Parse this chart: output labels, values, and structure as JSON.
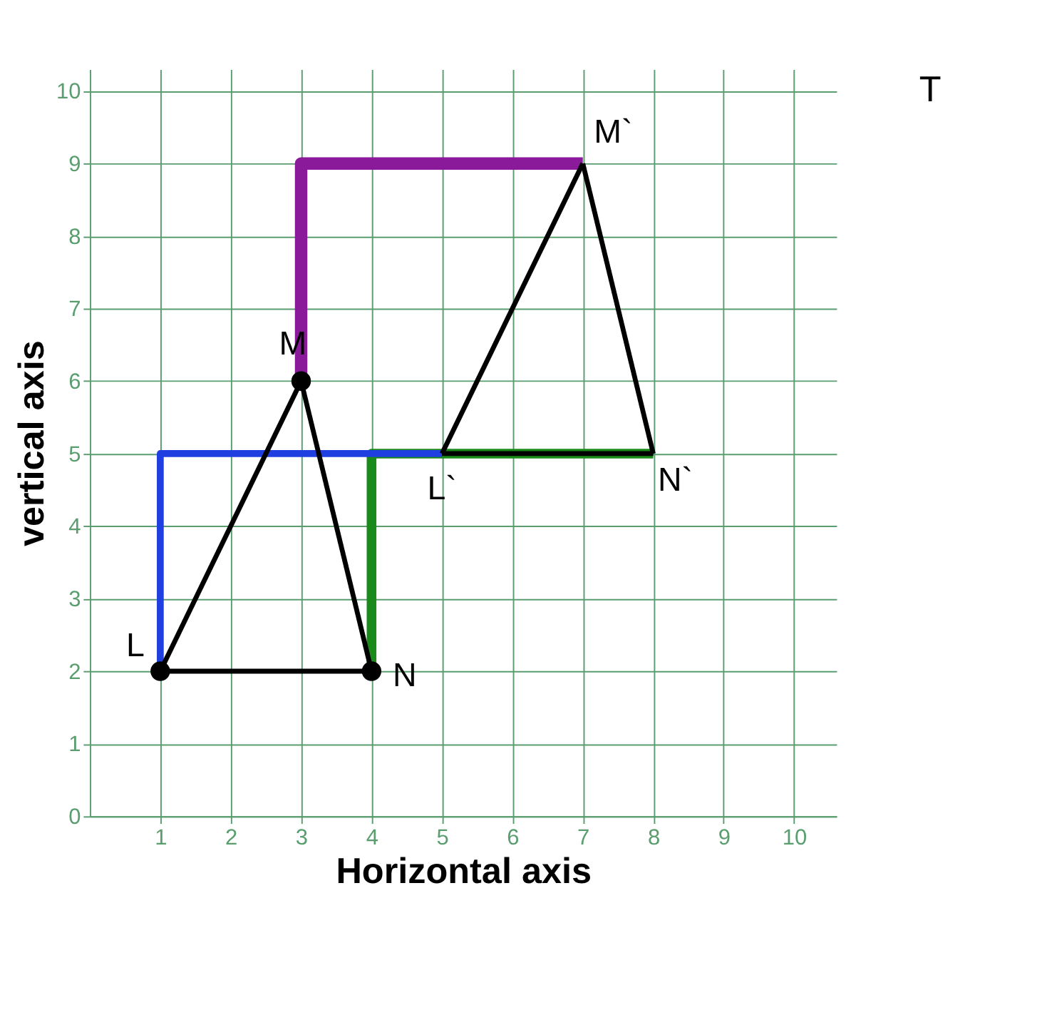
{
  "chart_data": {
    "type": "line",
    "xlabel": "Horizontal axis",
    "ylabel": "vertical axis",
    "xlim": [
      0,
      10.6
    ],
    "ylim": [
      0,
      10.3
    ],
    "xticks": [
      1,
      2,
      3,
      4,
      5,
      6,
      7,
      8,
      9,
      10
    ],
    "yticks": [
      0,
      1,
      2,
      3,
      4,
      5,
      6,
      7,
      8,
      9,
      10
    ],
    "grid": true,
    "series": [
      {
        "color": "#000000",
        "x": [
          1,
          3
        ],
        "values": [
          2,
          6
        ]
      },
      {
        "color": "#000000",
        "x": [
          3,
          4
        ],
        "values": [
          6,
          2
        ]
      },
      {
        "color": "#000000",
        "x": [
          1,
          4
        ],
        "values": [
          2,
          2
        ]
      },
      {
        "color": "#000000",
        "x": [
          5,
          7
        ],
        "values": [
          5,
          9
        ]
      },
      {
        "color": "#000000",
        "x": [
          7,
          8
        ],
        "values": [
          9,
          5
        ]
      },
      {
        "color": "#000000",
        "x": [
          5,
          8
        ],
        "values": [
          5,
          5
        ]
      },
      {
        "color": "#1f3fe0",
        "x": [
          1,
          1,
          5
        ],
        "values": [
          2,
          5,
          5
        ]
      },
      {
        "color": "#1a8a1a",
        "x": [
          4,
          4,
          8
        ],
        "values": [
          2,
          5,
          5
        ]
      },
      {
        "color": "#8a1a9a",
        "x": [
          3,
          3,
          7
        ],
        "values": [
          6,
          9,
          9
        ]
      },
      {
        "type": "scatter",
        "marker": "circle",
        "color": "#000000",
        "x": [
          1,
          3,
          4
        ],
        "values": [
          2,
          6,
          2
        ]
      }
    ],
    "annotations": [
      {
        "text": "L",
        "x": 1,
        "y": 2
      },
      {
        "text": "M",
        "x": 3,
        "y": 6
      },
      {
        "text": "N",
        "x": 4,
        "y": 2
      },
      {
        "text": "L`",
        "x": 5,
        "y": 5
      },
      {
        "text": "M`",
        "x": 7,
        "y": 9
      },
      {
        "text": "N`",
        "x": 8,
        "y": 5
      },
      "T"
    ]
  }
}
